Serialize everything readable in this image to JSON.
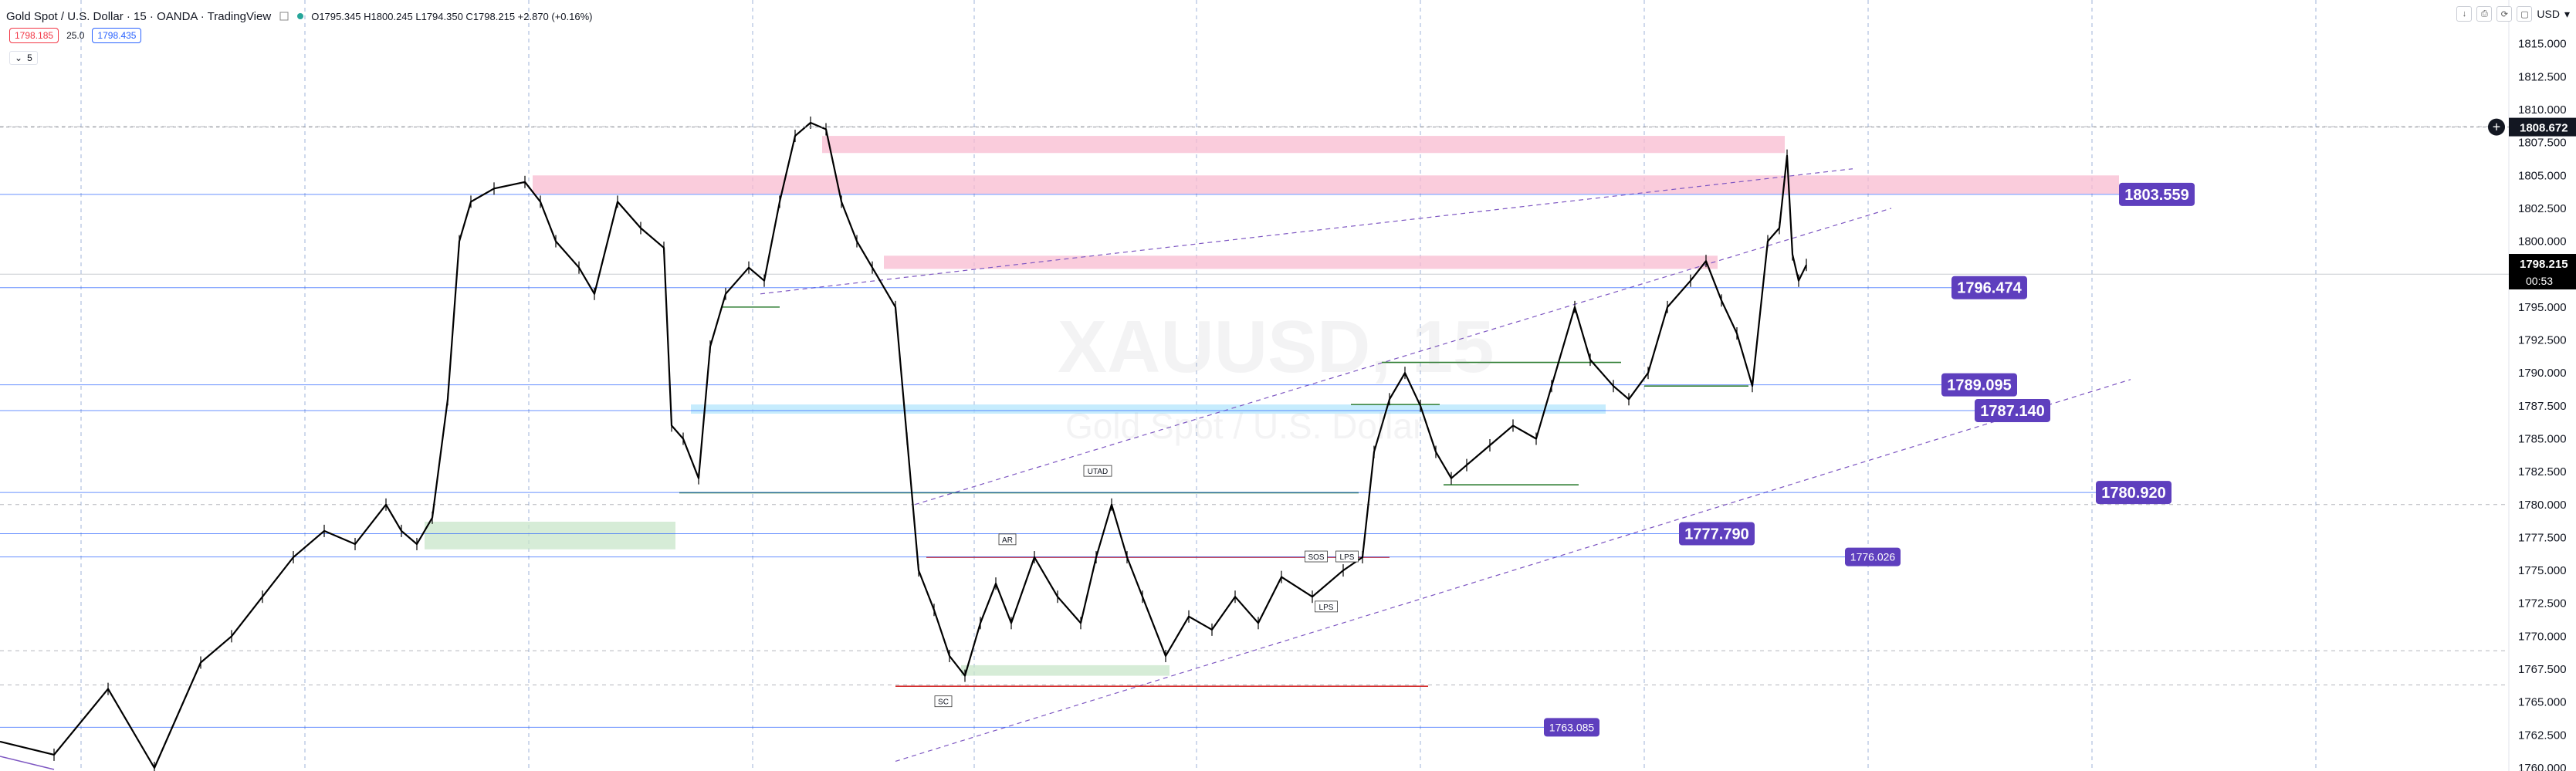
{
  "legend": {
    "title": "Gold Spot / U.S. Dollar · 15 · OANDA · TradingView",
    "ohlc": "O1795.345 H1800.245 L1794.350 C1798.215 +2.870 (+0.16%)",
    "sell_price": "1798.185",
    "spread": "25.0",
    "buy_price": "1798.435",
    "indicator_label": "5"
  },
  "currency": "USD",
  "watermark": {
    "symbol": "XAUUSD, 15",
    "description": "Gold Spot / U.S. Dollar"
  },
  "axis": {
    "min": 1760.0,
    "max": 1817.5,
    "ticks": [
      "1815.000",
      "1812.500",
      "1810.000",
      "1807.500",
      "1805.000",
      "1802.500",
      "1800.000",
      "1797.500",
      "1795.000",
      "1792.500",
      "1790.000",
      "1787.500",
      "1785.000",
      "1782.500",
      "1780.000",
      "1777.500",
      "1775.000",
      "1772.500",
      "1770.000",
      "1767.500",
      "1765.000",
      "1762.500",
      "1760.000"
    ],
    "crosshair_label": "1808.672",
    "crosshair_value": 1808.672,
    "current_price": "1798.215",
    "current_value": 1798.215,
    "countdown": "00:53"
  },
  "levels": [
    {
      "label": "1803.559",
      "value": 1803.559,
      "color": "#5e3fbe"
    },
    {
      "label": "1796.474",
      "value": 1796.474,
      "color": "#5e3fbe"
    },
    {
      "label": "1789.095",
      "value": 1789.095,
      "color": "#5e3fbe"
    },
    {
      "label": "1787.140",
      "value": 1787.14,
      "color": "#5e3fbe"
    },
    {
      "label": "1780.920",
      "value": 1780.92,
      "color": "#5e3fbe"
    },
    {
      "label": "1777.790",
      "value": 1777.79,
      "color": "#5e3fbe"
    },
    {
      "label": "1776.026",
      "value": 1776.026,
      "color": "#5e3fbe"
    },
    {
      "label": "1763.085",
      "value": 1763.085,
      "color": "#5e3fbe"
    }
  ],
  "annotations": [
    {
      "label": "UTAD"
    },
    {
      "label": "AR"
    },
    {
      "label": "SC"
    },
    {
      "label": "LPS"
    },
    {
      "label": "LPS"
    },
    {
      "label": "SOS"
    }
  ],
  "colors": {
    "pink_zone": "#f8bbd0",
    "green_zone": "#c8e6c9",
    "blue_zone": "#b3e5fc",
    "level_line": "#2962ff",
    "support_green": "#2e7d32",
    "resistance_red": "#d32f2f",
    "trend_purple": "#7e57c2",
    "grid": "#9fb3d8",
    "candle": "#000000"
  }
}
